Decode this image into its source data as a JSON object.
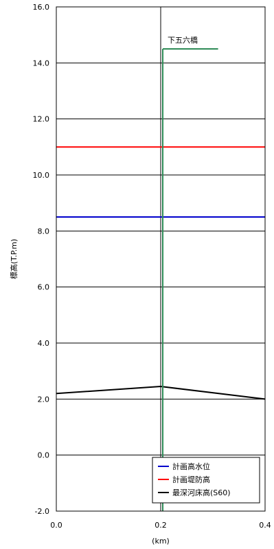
{
  "chart_data": {
    "type": "line",
    "title": "",
    "xlabel": "(km)",
    "ylabel": "標高(T.P.m)",
    "xlim": [
      0.0,
      0.4
    ],
    "ylim": [
      -2.0,
      16.0
    ],
    "x_ticks": [
      "0.0",
      "0.2",
      "0.4"
    ],
    "y_ticks": [
      "-2.0",
      "0.0",
      "2.0",
      "4.0",
      "6.0",
      "8.0",
      "10.0",
      "12.0",
      "14.0",
      "16.0"
    ],
    "grid": true,
    "legend_position": "bottom-right",
    "series": [
      {
        "name": "計画高水位",
        "color": "#0000cc",
        "x": [
          0.0,
          0.4
        ],
        "y": [
          8.5,
          8.5
        ]
      },
      {
        "name": "計画堤防高",
        "color": "#ff0000",
        "x": [
          0.0,
          0.4
        ],
        "y": [
          11.0,
          11.0
        ]
      },
      {
        "name": "最深河床高(S60)",
        "color": "#000000",
        "x": [
          0.0,
          0.2,
          0.4
        ],
        "y": [
          2.2,
          2.45,
          2.0
        ]
      }
    ],
    "annotations": [
      {
        "text": "下五六橋",
        "color": "#2e8b57",
        "x": 0.2,
        "bridge_bottom": -2.0,
        "bridge_top": 14.5,
        "bar_end_x": 0.31
      }
    ]
  }
}
